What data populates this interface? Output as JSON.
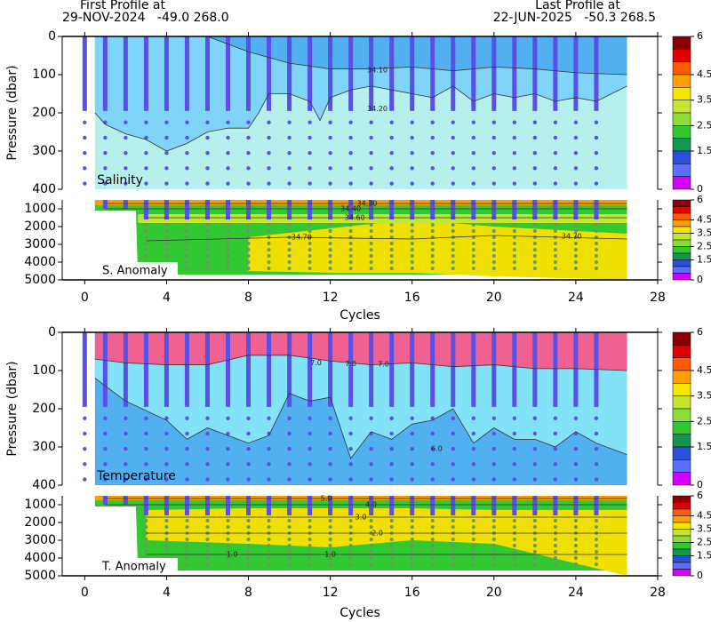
{
  "header": {
    "first_title": "First Profile at",
    "first_info": "29-NOV-2024   -49.0 268.0",
    "last_title": "Last Profile at",
    "last_info": "22-JUN-2025   -50.3 268.5"
  },
  "colorbar": {
    "colors": [
      "#8b0000",
      "#e00000",
      "#ff5a00",
      "#ffa000",
      "#f5e600",
      "#c3e632",
      "#8cdc3c",
      "#32c832",
      "#149650",
      "#2850dc",
      "#5a6eff",
      "#d200ff"
    ],
    "lim": [
      0,
      6
    ],
    "ticks": [
      0,
      1.5,
      2.5,
      3.5,
      4.5,
      6
    ]
  },
  "chart_data": [
    {
      "type": "section",
      "xlabel": "Cycles",
      "ylabel": "Pressure (dbar)",
      "xlim": [
        -1.1,
        28
      ],
      "xticks": [
        0,
        4,
        8,
        12,
        16,
        20,
        24,
        28
      ],
      "profiles": [
        0,
        1,
        2,
        3,
        4,
        5,
        6,
        7,
        8,
        9,
        10,
        11,
        12,
        13,
        14,
        15,
        16,
        17,
        18,
        19,
        20,
        21,
        22,
        23,
        24,
        25
      ],
      "upper": {
        "label": "Salinity",
        "ylim": [
          0,
          400
        ],
        "yticks": [
          0,
          100,
          200,
          300,
          400
        ],
        "background": "#b6f0ec",
        "contours": [
          {
            "label": "34.20",
            "fill_above": "#7fd4f8",
            "x": [
              0.5,
              1,
              2,
              3,
              4,
              5,
              6,
              7,
              8,
              8.5,
              9,
              10,
              11,
              11.5,
              12,
              13,
              14,
              15,
              16,
              17,
              18,
              19,
              20,
              21,
              22,
              23,
              24,
              25,
              26.5
            ],
            "y": [
              200,
              230,
              255,
              270,
              300,
              280,
              250,
              240,
              240,
              200,
              150,
              150,
              170,
              220,
              160,
              140,
              130,
              140,
              150,
              160,
              130,
              170,
              150,
              160,
              150,
              170,
              160,
              170,
              130
            ],
            "labels_at": [
              [
                14.3,
                190
              ]
            ]
          },
          {
            "label": "34.10",
            "fill_above": "#52b0f0",
            "x": [
              6,
              8,
              10,
              12,
              14,
              16,
              18,
              20,
              22,
              24,
              26.5
            ],
            "y": [
              0,
              40,
              70,
              85,
              85,
              80,
              90,
              80,
              85,
              95,
              100
            ],
            "labels_at": [
              [
                14.3,
                88
              ]
            ]
          }
        ]
      },
      "lower": {
        "label": "S. Anomaly",
        "ylim": [
          500,
          5000
        ],
        "yticks": [
          1000,
          2000,
          3000,
          4000,
          5000
        ],
        "bands": [
          {
            "color": "#32c832",
            "x": [
              0.5,
              2.5,
              2.6,
              26.5
            ],
            "top": [
              500,
              500,
              500,
              500
            ],
            "bottom": [
              1100,
              1100,
              4700,
              4700
            ]
          },
          {
            "color": "#f0e000",
            "x": [
              8,
              12,
              16,
              20,
              26.5
            ],
            "top": [
              2600,
              2100,
              1600,
              2000,
              2400
            ],
            "bottom": [
              4500,
              4600,
              4600,
              4800,
              5000
            ]
          },
          {
            "color": "#c3e632",
            "x": [
              2.6,
              26.5
            ],
            "top": [
              1300,
              1300
            ],
            "bottom": [
              1800,
              1800
            ]
          },
          {
            "color": "#f0a000",
            "x": [
              0.5,
              26.5
            ],
            "top": [
              500,
              500
            ],
            "bottom": [
              800,
              800
            ]
          }
        ],
        "contours": [
          {
            "label": "34.70",
            "x": [
              3,
              10,
              16,
              20,
              26.5
            ],
            "y": [
              2800,
              2600,
              2700,
              2500,
              2700
            ],
            "labels_at": [
              [
                10.6,
                2600
              ],
              [
                23.8,
                2550
              ]
            ]
          },
          {
            "label": "34.60",
            "x": [
              3,
              26.5
            ],
            "y": [
              1500,
              1500
            ],
            "labels_at": [
              [
                13.2,
                1500
              ]
            ]
          },
          {
            "label": "34.40",
            "x": [
              1,
              26.5
            ],
            "y": [
              1000,
              1000
            ],
            "labels_at": [
              [
                13.0,
                1000
              ]
            ]
          },
          {
            "label": "34.30",
            "x": [
              1,
              26.5
            ],
            "y": [
              700,
              700
            ],
            "labels_at": [
              [
                13.8,
                700
              ]
            ]
          }
        ]
      }
    },
    {
      "type": "section",
      "xlabel": "Cycles",
      "ylabel": "Pressure (dbar)",
      "xlim": [
        -1.1,
        28
      ],
      "xticks": [
        0,
        4,
        8,
        12,
        16,
        20,
        24,
        28
      ],
      "profiles": [
        0,
        1,
        2,
        3,
        4,
        5,
        6,
        7,
        8,
        9,
        10,
        11,
        12,
        13,
        14,
        15,
        16,
        17,
        18,
        19,
        20,
        21,
        22,
        23,
        24,
        25
      ],
      "upper": {
        "label": "Temperature",
        "ylim": [
          0,
          400
        ],
        "yticks": [
          0,
          100,
          200,
          300,
          400
        ],
        "background": "#50b0f0",
        "contours": [
          {
            "label": "6.0",
            "fill_above": "#82e2f8",
            "x": [
              0.5,
              2,
              4,
              5,
              6,
              7,
              8,
              9,
              10,
              11,
              12,
              13,
              14,
              15,
              16,
              17,
              18,
              19,
              20,
              21,
              22,
              23,
              24,
              25,
              26.5
            ],
            "y": [
              120,
              180,
              230,
              280,
              250,
              270,
              290,
              270,
              160,
              180,
              170,
              330,
              260,
              280,
              240,
              230,
              200,
              290,
              250,
              280,
              280,
              300,
              260,
              290,
              320
            ],
            "labels_at": [
              [
                17.2,
                305
              ]
            ]
          },
          {
            "label": "7.0",
            "fill_above": "#f06090",
            "x": [
              0.5,
              2,
              4,
              6,
              8,
              10,
              12,
              14,
              16,
              18,
              20,
              22,
              24,
              26.5
            ],
            "y": [
              70,
              80,
              85,
              85,
              60,
              60,
              75,
              85,
              80,
              90,
              85,
              95,
              95,
              100
            ],
            "labels_at": [
              [
                11.3,
                80
              ],
              [
                13.0,
                82
              ],
              [
                14.6,
                84
              ]
            ]
          }
        ]
      },
      "lower": {
        "label": "T. Anomaly",
        "ylim": [
          500,
          5000
        ],
        "yticks": [
          1000,
          2000,
          3000,
          4000,
          5000
        ],
        "bands": [
          {
            "color": "#32c832",
            "x": [
              0.5,
              2.5,
              2.6,
              26.5
            ],
            "top": [
              500,
              500,
              500,
              500
            ],
            "bottom": [
              1100,
              1100,
              4700,
              4700
            ]
          },
          {
            "color": "#f0e000",
            "x": [
              3,
              8,
              12,
              16,
              20,
              26.5
            ],
            "top": [
              1300,
              1200,
              1200,
              1200,
              1300,
              1300
            ],
            "bottom": [
              3000,
              3200,
              3400,
              3000,
              3200,
              5000
            ]
          },
          {
            "color": "#f0a000",
            "x": [
              0.5,
              26.5
            ],
            "top": [
              500,
              500
            ],
            "bottom": [
              750,
              750
            ]
          }
        ],
        "contours": [
          {
            "label": "5.0",
            "x": [
              1,
              26.5
            ],
            "y": [
              650,
              650
            ],
            "labels_at": [
              [
                11.8,
                650
              ]
            ]
          },
          {
            "label": "4.0",
            "x": [
              1,
              26.5
            ],
            "y": [
              1000,
              1000
            ],
            "labels_at": [
              [
                14.0,
                1000
              ]
            ]
          },
          {
            "label": "3.0",
            "x": [
              3,
              26.5
            ],
            "y": [
              1700,
              1700
            ],
            "labels_at": [
              [
                13.5,
                1700
              ]
            ]
          },
          {
            "label": "2.0",
            "x": [
              3,
              26.5
            ],
            "y": [
              2600,
              2600
            ],
            "labels_at": [
              [
                14.3,
                2600
              ]
            ]
          },
          {
            "label": "1.0",
            "x": [
              3,
              26.5
            ],
            "y": [
              3800,
              3800
            ],
            "labels_at": [
              [
                12.0,
                3800
              ],
              [
                7.2,
                3800
              ]
            ]
          }
        ]
      }
    }
  ]
}
